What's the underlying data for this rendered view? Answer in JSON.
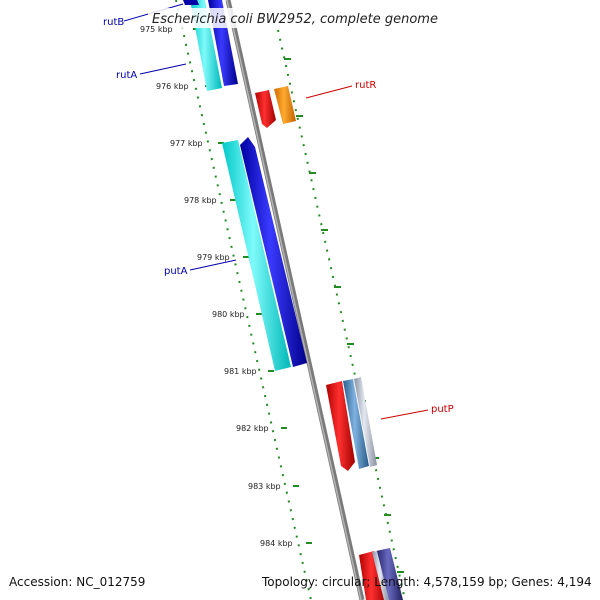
{
  "title": "Escherichia coli BW2952, complete genome",
  "accession": "Accession: NC_012759",
  "summary": "Topology: circular; Length: 4,578,159 bp; Genes: 4,194",
  "ticks": [
    {
      "label": "975 kbp"
    },
    {
      "label": "976 kbp"
    },
    {
      "label": "977 kbp"
    },
    {
      "label": "978 kbp"
    },
    {
      "label": "979 kbp"
    },
    {
      "label": "980 kbp"
    },
    {
      "label": "981 kbp"
    },
    {
      "label": "982 kbp"
    },
    {
      "label": "983 kbp"
    },
    {
      "label": "984 kbp"
    }
  ],
  "genes": [
    {
      "name": "rutB",
      "color": "#0000aa"
    },
    {
      "name": "rutA",
      "color": "#0000aa"
    },
    {
      "name": "rutR",
      "color": "#cc0000"
    },
    {
      "name": "putA",
      "color": "#0000aa"
    },
    {
      "name": "putP",
      "color": "#cc0000"
    }
  ],
  "colors": {
    "backbone": "#888888",
    "ruler": "#228b22",
    "reverse_cds": "#00e0e0",
    "reverse_gene": "#0000dd",
    "forward_cds": "#ff0000",
    "forward_gene_orange": "#ff8c00",
    "forward_gene_steel": "#4682b4",
    "forward_light": "#b0b8c8",
    "forward_purple": "#3a3a8c"
  }
}
